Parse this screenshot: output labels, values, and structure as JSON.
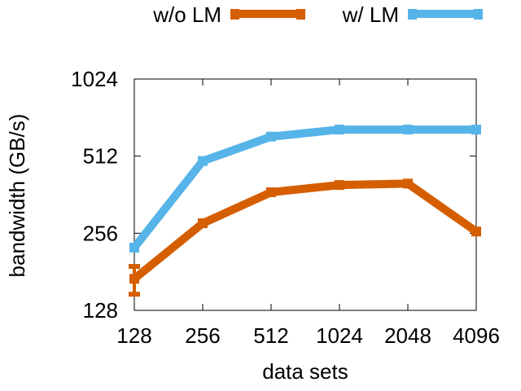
{
  "chart_data": {
    "type": "line",
    "x_categories": [
      128,
      256,
      512,
      1024,
      2048,
      4096
    ],
    "x_label_text": [
      "128",
      "256",
      "512",
      "1024",
      "2048",
      "4096"
    ],
    "xlabel": "data sets",
    "ylabel": "bandwidth (GB/s)",
    "y_scale": "log2",
    "ylim": [
      128,
      1024
    ],
    "y_ticks": [
      128,
      256,
      512,
      1024
    ],
    "y_tick_labels": [
      "128",
      "256",
      "512",
      "1024"
    ],
    "grid": false,
    "legend_position": "top",
    "series": [
      {
        "name": "w/o LM",
        "color": "#D55E00",
        "values": [
          170,
          280,
          370,
          395,
          400,
          260
        ],
        "error_bar_at_first": [
          148,
          190
        ]
      },
      {
        "name": "w/ LM",
        "color": "#56B4E9",
        "values": [
          225,
          490,
          610,
          650,
          650,
          650
        ]
      }
    ]
  }
}
